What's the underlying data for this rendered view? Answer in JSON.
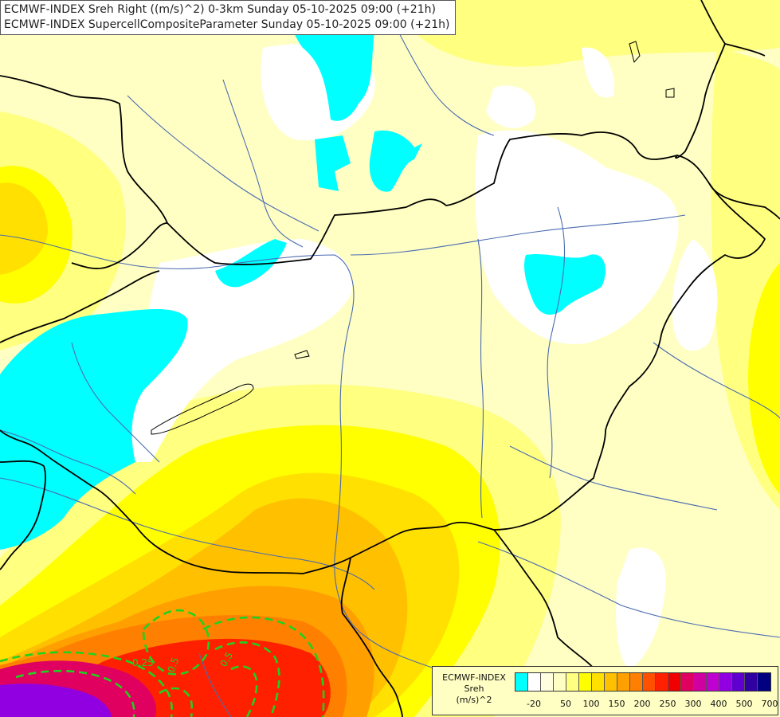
{
  "header": {
    "line1": "ECMWF-INDEX Sreh Right ((m/s)^2) 0-3km Sunday 05-10-2025 09:00 (+21h)",
    "line2": "ECMWF-INDEX SupercellCompositeParameter Sunday 05-10-2025 09:00 (+21h)"
  },
  "legend": {
    "title1": "ECMWF-INDEX",
    "title2": "Sreh",
    "title3": "(m/s)^2",
    "colors": [
      "#00ffff",
      "#ffffff",
      "#ffffe0",
      "#ffffc4",
      "#ffff80",
      "#ffff00",
      "#ffe000",
      "#ffc000",
      "#ffa000",
      "#ff8000",
      "#ff5000",
      "#ff2000",
      "#f00000",
      "#e00060",
      "#d000a0",
      "#c000d0",
      "#9000e0",
      "#6000d0",
      "#3000a0",
      "#000080"
    ],
    "ticks": [
      "-20",
      "50",
      "100",
      "150",
      "200",
      "250",
      "300",
      "400",
      "500",
      "700"
    ]
  },
  "contour_labels": [
    "0.25",
    "0.5",
    "0.5"
  ],
  "colors": {
    "cyan": "#00ffff",
    "white": "#ffffff",
    "pale": "#ffffc4",
    "yellow": "#ffff00",
    "orange": "#ffa000",
    "red": "#ff2000",
    "purple": "#9000e0",
    "border": "#000000",
    "river": "#4a6bb0",
    "contour": "#1fd21f"
  }
}
